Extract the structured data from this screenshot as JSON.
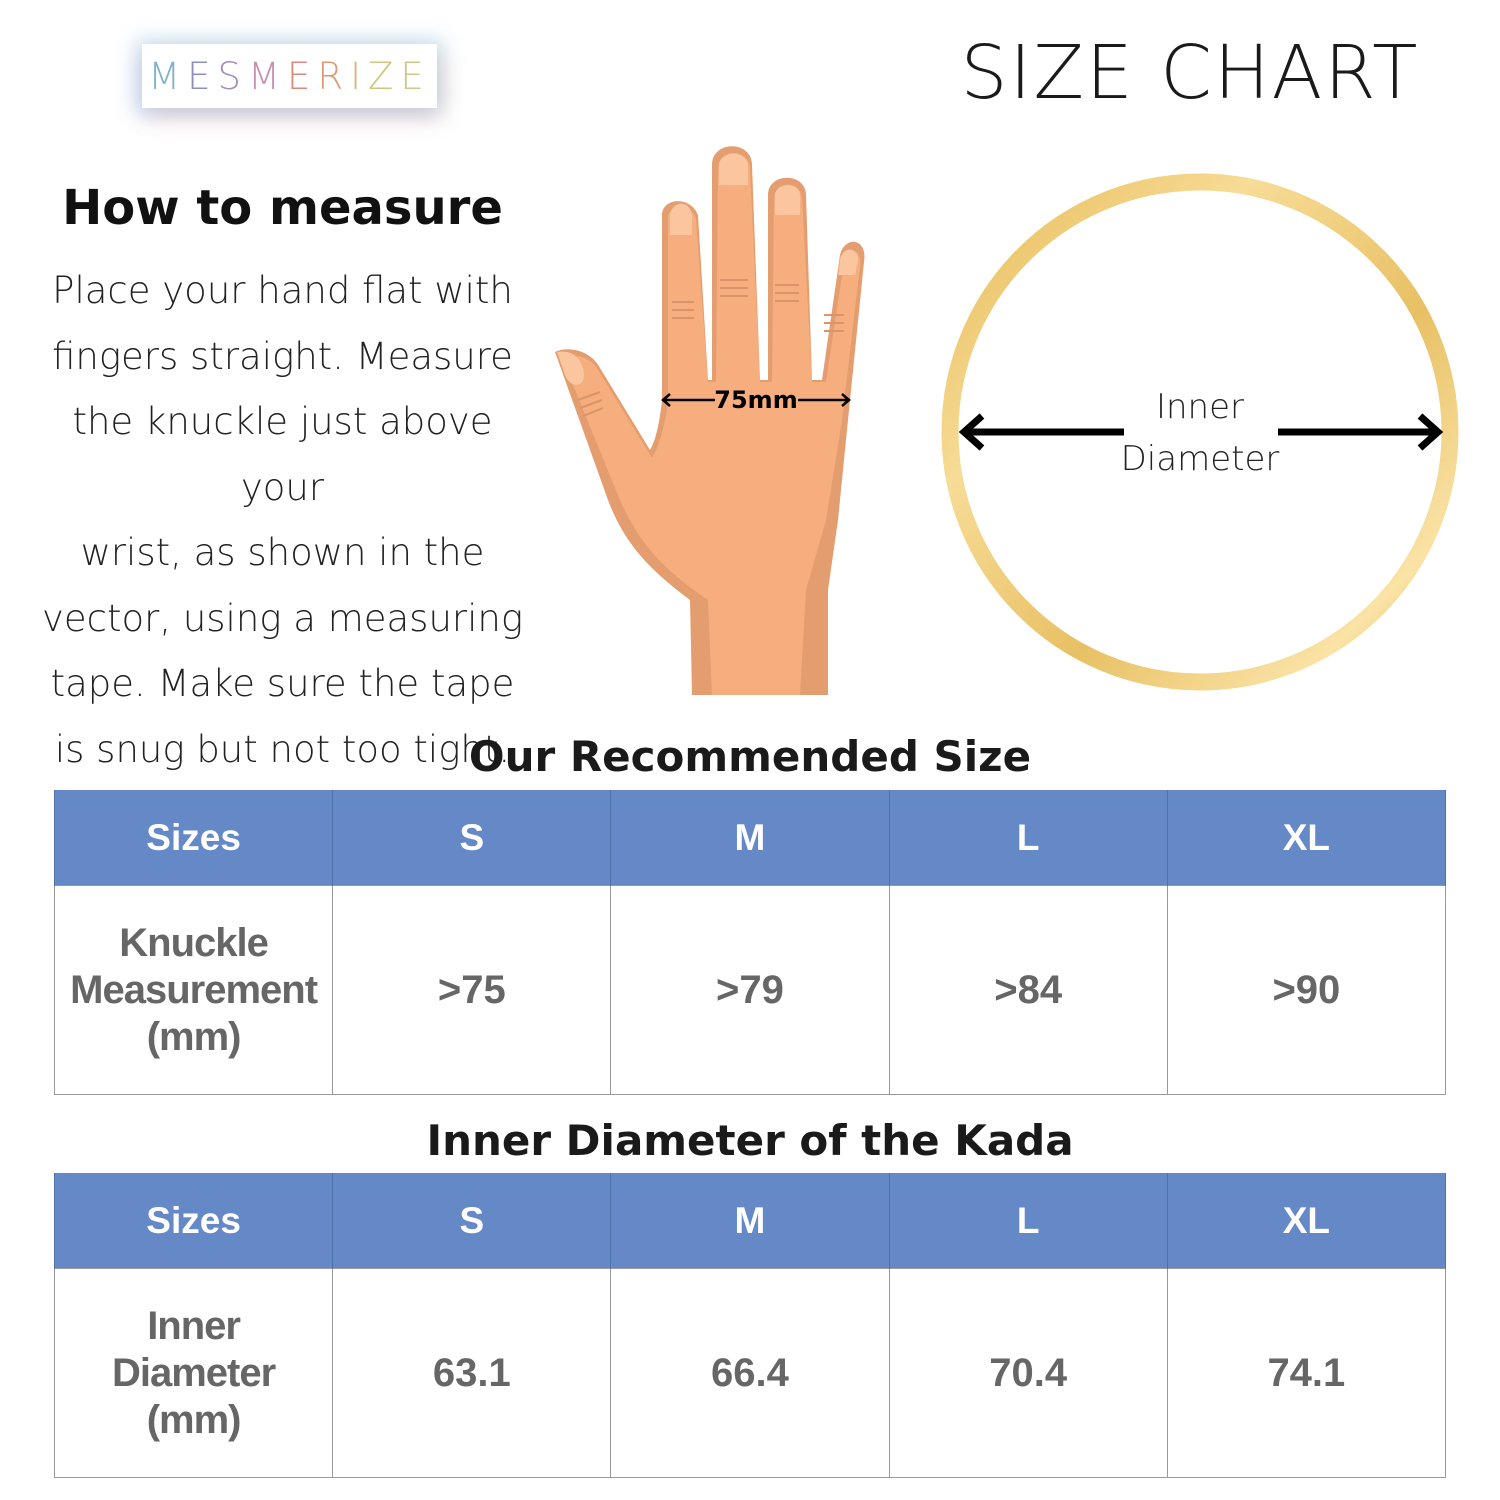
{
  "brand": {
    "logo_text": "MESMERIZE",
    "letter_colors": [
      "#7fb0cc",
      "#8e8cc4",
      "#a98bbf",
      "#c890b0",
      "#d98a7a",
      "#dc9a74",
      "#d9b47a",
      "#d2c27c",
      "#c9c98a"
    ]
  },
  "header": {
    "title": "SIZE CHART"
  },
  "how_to": {
    "title": "How to measure",
    "lines": [
      "Place your hand flat with",
      "fingers straight. Measure",
      "the knuckle just above your",
      "wrist, as shown in the",
      "vector, using a measuring",
      "tape. Make sure the tape",
      "is snug but not too tight."
    ]
  },
  "hand_illustration": {
    "measurement_label": "75mm",
    "skin_color": "#f6ae7e",
    "shadow_color": "#e49d6f"
  },
  "ring_illustration": {
    "label_line1": "Inner",
    "label_line2": "Diameter",
    "ring_color": "#e8c064"
  },
  "colors": {
    "table_header": "#6489c6",
    "table_text": "#666666"
  },
  "recommended": {
    "title": "Our Recommended Size",
    "headers": [
      "Sizes",
      "S",
      "M",
      "L",
      "XL"
    ],
    "row_label": [
      "Knuckle",
      "Measurement",
      "(mm)"
    ],
    "values": [
      ">75",
      ">79",
      ">84",
      ">90"
    ]
  },
  "inner_diameter": {
    "title": "Inner Diameter of the Kada",
    "headers": [
      "Sizes",
      "S",
      "M",
      "L",
      "XL"
    ],
    "row_label": [
      "Inner",
      "Diameter",
      "(mm)"
    ],
    "values": [
      "63.1",
      "66.4",
      "70.4",
      "74.1"
    ]
  }
}
